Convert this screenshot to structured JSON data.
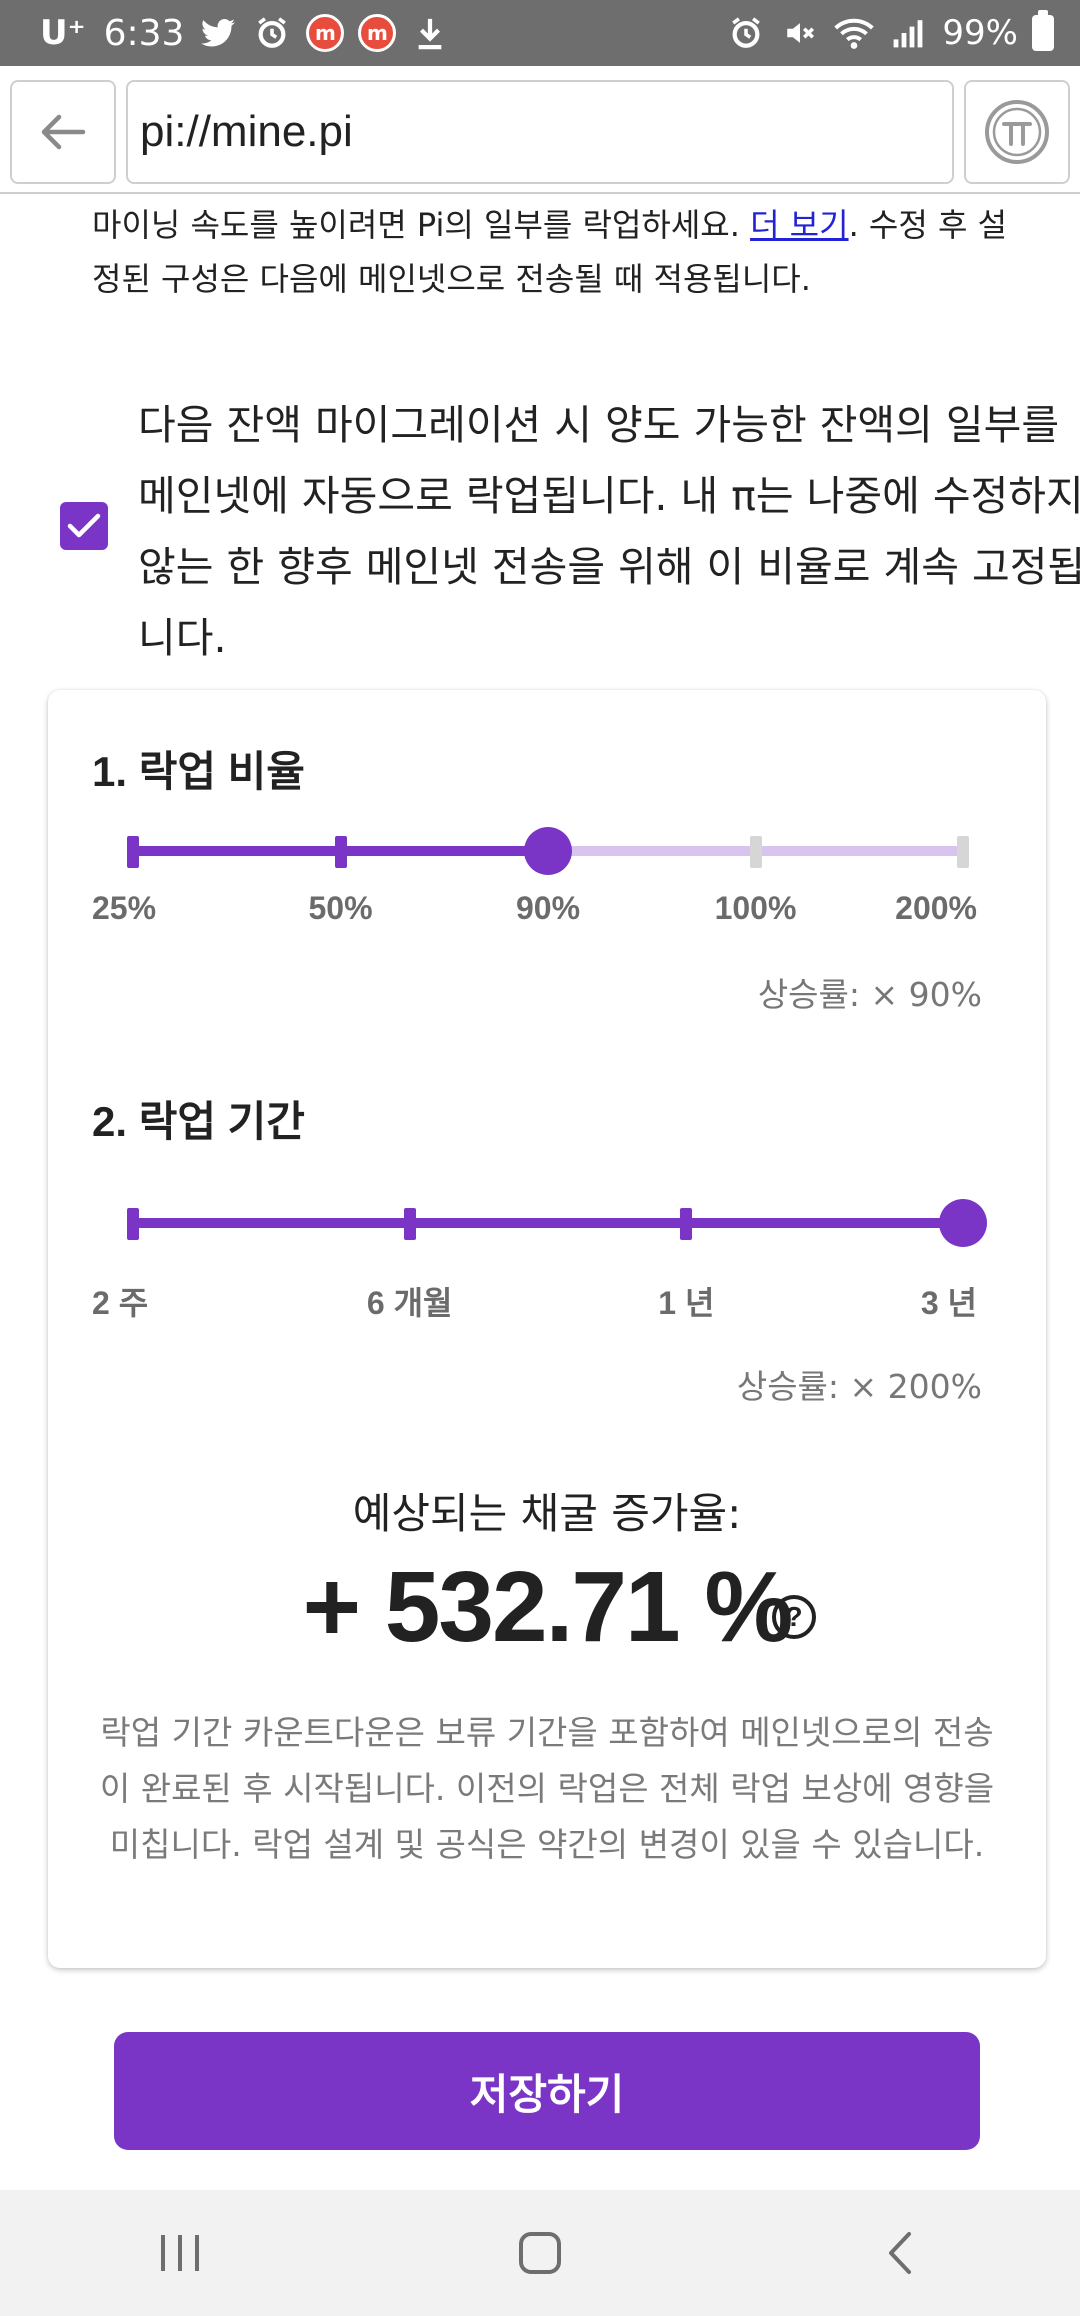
{
  "status_bar": {
    "carrier": "U⁺",
    "time": "6:33",
    "left_icons": [
      "twitter-icon",
      "alarm-icon",
      "m-app-icon",
      "m-app-icon",
      "download-icon"
    ],
    "right_icons": [
      "alarm-icon",
      "mute-icon",
      "wifi-icon",
      "signal-icon"
    ],
    "battery": "99%"
  },
  "browser": {
    "url": "pi://mine.pi"
  },
  "intro": {
    "text": "마이닝 속도를 높이려면 Pi의 일부를 락업하세요. ",
    "link": "더 보기",
    "text_after": ". 수정 후 설정된 구성은 다음에 메인넷으로 전송될 때 적용됩니다."
  },
  "consent": {
    "checked": true,
    "text": "다음 잔액 마이그레이션 시 양도 가능한 잔액의 일부를 메인넷에 자동으로 락업됩니다. 내 π는 나중에 수정하지 않는 한 향후 메인넷 전송을 위해 이 비율로 계속 고정됩니다."
  },
  "lockup_ratio": {
    "title": "1. 락업 비율",
    "options": [
      "25%",
      "50%",
      "90%",
      "100%",
      "200%"
    ],
    "selected_index": 2,
    "rate": "상승률: × 90%"
  },
  "lockup_period": {
    "title": "2. 락업 기간",
    "options": [
      "2 주",
      "6 개월",
      "1 년",
      "3 년"
    ],
    "selected_index": 3,
    "rate": "상승률: × 200%"
  },
  "estimate": {
    "title": "예상되는 채굴 증가율:",
    "value": "+ 532.71 %",
    "note": "락업 기간 카운트다운은 보류 기간을 포함하여 메인넷으로의 전송이 완료된 후 시작됩니다. 이전의 락업은 전체 락업 보상에 영향을 미칩니다. 락업 설계 및 공식은 약간의 변경이 있을 수 있습니다."
  },
  "save_button": "저장하기",
  "colors": {
    "accent": "#7b35c6",
    "accent_light": "#d9c3ef",
    "inactive_tick": "#d6d6d6"
  }
}
